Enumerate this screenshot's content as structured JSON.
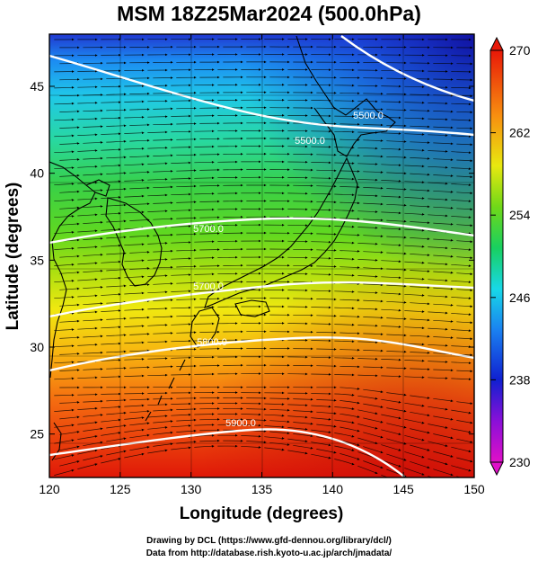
{
  "title": "MSM 18Z25Mar2024 (500.0hPa)",
  "xaxis": {
    "label": "Longitude (degrees)",
    "min": 120,
    "max": 150,
    "ticks": [
      "120",
      "125",
      "130",
      "135",
      "140",
      "145",
      "150"
    ]
  },
  "yaxis": {
    "label": "Latitude  (degrees)",
    "min": 22.5,
    "max": 48,
    "ticks": [
      "25",
      "30",
      "35",
      "40",
      "45"
    ]
  },
  "colorbar": {
    "min": 230,
    "max": 270,
    "ticks": [
      "230",
      "238",
      "246",
      "254",
      "262",
      "270"
    ]
  },
  "contours": [
    {
      "label": "5500.0"
    },
    {
      "label": "5500.0"
    },
    {
      "label": "5700.0"
    },
    {
      "label": "5700.0"
    },
    {
      "label": "5800.0"
    },
    {
      "label": "5900.0"
    }
  ],
  "credits": {
    "line1": "Drawing by DCL (https://www.gfd-dennou.org/library/dcl/)",
    "line2": "Data from http://database.rish.kyoto-u.ac.jp/arch/jmadata/"
  },
  "colors": {
    "cold": "#0a1a9a",
    "warm": "#e0180a",
    "contour": "#ffffff",
    "coast": "#000000"
  }
}
